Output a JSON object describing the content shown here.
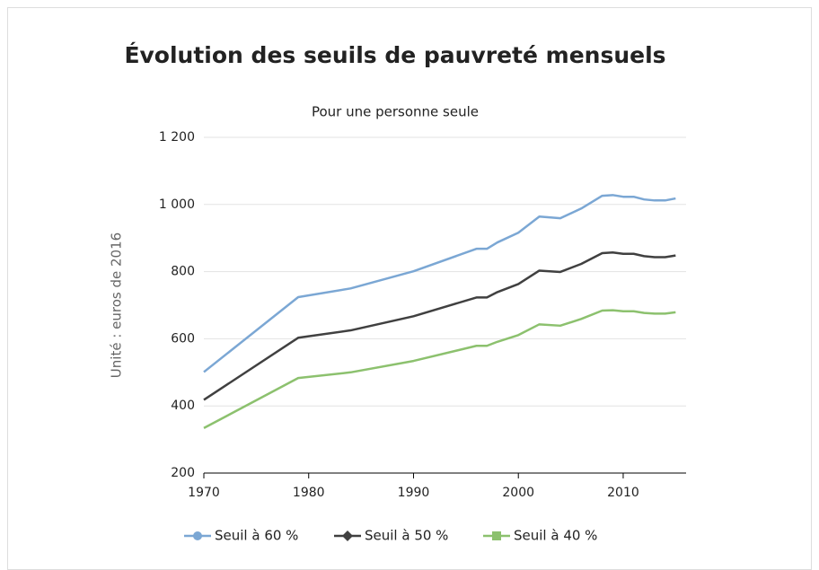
{
  "chart_data": {
    "type": "line",
    "title": "Évolution des seuils de pauvreté mensuels",
    "subtitle": "Pour une personne seule",
    "y_label": "Unité : euros de 2016",
    "x": [
      1970,
      1979,
      1984,
      1990,
      1996,
      1997,
      1998,
      2000,
      2002,
      2004,
      2006,
      2008,
      2009,
      2010,
      2011,
      2012,
      2013,
      2014,
      2015
    ],
    "series": [
      {
        "name": "Seuil à 60 %",
        "color": "#7ba7d4",
        "marker": "circle",
        "values": [
          501,
          724,
          750,
          801,
          868,
          868,
          887,
          916,
          964,
          959,
          988,
          1026,
          1028,
          1023,
          1023,
          1015,
          1012,
          1012,
          1018
        ]
      },
      {
        "name": "Seuil à 50 %",
        "color": "#404040",
        "marker": "diamond",
        "values": [
          418,
          603,
          625,
          667,
          723,
          723,
          739,
          763,
          803,
          799,
          823,
          855,
          857,
          853,
          853,
          846,
          843,
          843,
          848
        ]
      },
      {
        "name": "Seuil à 40 %",
        "color": "#8cc16e",
        "marker": "square",
        "values": [
          334,
          483,
          500,
          534,
          579,
          579,
          591,
          611,
          643,
          639,
          659,
          684,
          685,
          682,
          682,
          677,
          675,
          675,
          679
        ]
      }
    ],
    "xlim": [
      1970,
      2016
    ],
    "xticks": [
      1970,
      1980,
      1990,
      2000,
      2010
    ],
    "ylim": [
      200,
      1200
    ],
    "yticks": [
      200,
      400,
      600,
      800,
      {
        "value": 1000,
        "label": "1 000"
      },
      {
        "value": 1200,
        "label": "1 200"
      }
    ],
    "grid": true,
    "legend": "bottom"
  }
}
